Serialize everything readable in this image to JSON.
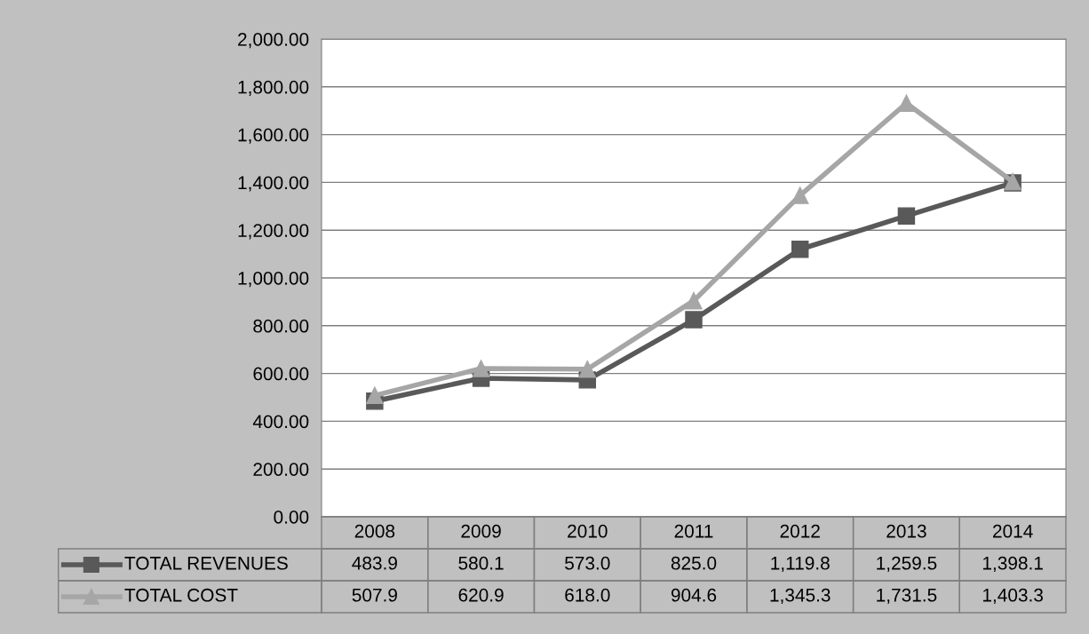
{
  "chart_data": {
    "type": "line",
    "categories": [
      "2008",
      "2009",
      "2010",
      "2011",
      "2012",
      "2013",
      "2014"
    ],
    "series": [
      {
        "name": "TOTAL REVENUES",
        "color": "#595959",
        "marker": "square",
        "values": [
          483.9,
          580.1,
          573.0,
          825.0,
          1119.8,
          1259.5,
          1398.1
        ],
        "value_labels": [
          "483.9",
          "580.1",
          "573.0",
          "825.0",
          "1,119.8",
          "1,259.5",
          "1,398.1"
        ]
      },
      {
        "name": "TOTAL COST",
        "color": "#a6a6a6",
        "marker": "triangle",
        "values": [
          507.9,
          620.9,
          618.0,
          904.6,
          1345.3,
          1731.5,
          1403.3
        ],
        "value_labels": [
          "507.9",
          "620.9",
          "618.0",
          "904.6",
          "1,345.3",
          "1,731.5",
          "1,403.3"
        ]
      }
    ],
    "ylim": [
      0,
      2000
    ],
    "yticks": [
      {
        "value": 0,
        "label": "0.00"
      },
      {
        "value": 200,
        "label": "200.00"
      },
      {
        "value": 400,
        "label": "400.00"
      },
      {
        "value": 600,
        "label": "600.00"
      },
      {
        "value": 800,
        "label": "800.00"
      },
      {
        "value": 1000,
        "label": "1,000.00"
      },
      {
        "value": 1200,
        "label": "1,200.00"
      },
      {
        "value": 1400,
        "label": "1,400.00"
      },
      {
        "value": 1600,
        "label": "1,600.00"
      },
      {
        "value": 1800,
        "label": "1,800.00"
      },
      {
        "value": 2000,
        "label": "2,000.00"
      }
    ],
    "grid": "y",
    "legend": "bottom",
    "line_style": "solid"
  }
}
